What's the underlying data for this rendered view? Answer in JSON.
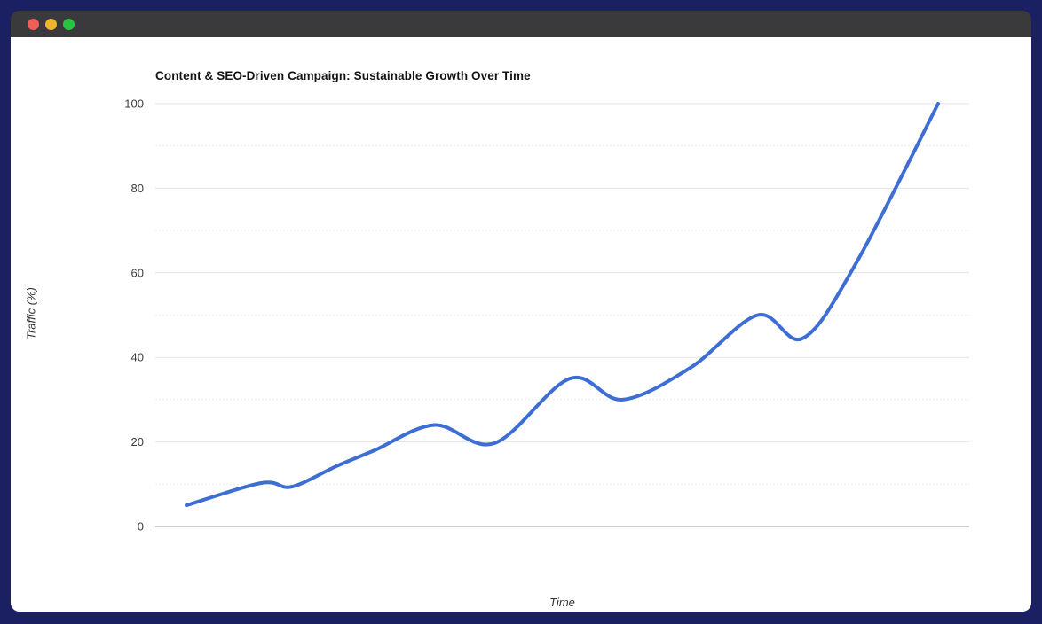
{
  "window": {
    "background_color": "#1a2061",
    "titlebar_color": "#3a3a3c",
    "traffic_lights": [
      {
        "name": "close-button",
        "color": "#ee5f57"
      },
      {
        "name": "minimize-button",
        "color": "#f0b42e"
      },
      {
        "name": "maximize-button",
        "color": "#2bc440"
      }
    ]
  },
  "chart_data": {
    "type": "line",
    "title": "Content & SEO-Driven Campaign: Sustainable Growth Over Time",
    "xlabel": "Time",
    "ylabel": "Traffic (%)",
    "xlim": [
      0,
      10
    ],
    "ylim": [
      0,
      100
    ],
    "y_ticks": [
      0,
      20,
      40,
      60,
      80,
      100
    ],
    "y_minor_gridlines": [
      10,
      30,
      50,
      70,
      90
    ],
    "x_tick_labels": [],
    "grid": "horizontal-only",
    "legend": "none",
    "line_color": "#3d6ed3",
    "line_width": 4,
    "major_grid_color": "#e4e4e4",
    "minor_grid_color": "#ececec",
    "zero_axis_color": "#9a9a9a",
    "tick_label_color": "#3d3d3d",
    "series": [
      {
        "smooth": true,
        "points": [
          [
            0,
            5
          ],
          [
            1,
            10.3
          ],
          [
            1.4,
            9.4
          ],
          [
            2,
            14.3
          ],
          [
            2.5,
            18
          ],
          [
            3.3,
            24
          ],
          [
            4.1,
            19.7
          ],
          [
            5.1,
            35
          ],
          [
            5.8,
            30
          ],
          [
            6.7,
            37.5
          ],
          [
            7.6,
            50
          ],
          [
            8.2,
            44.5
          ],
          [
            8.9,
            62
          ],
          [
            10,
            100
          ]
        ]
      }
    ]
  }
}
